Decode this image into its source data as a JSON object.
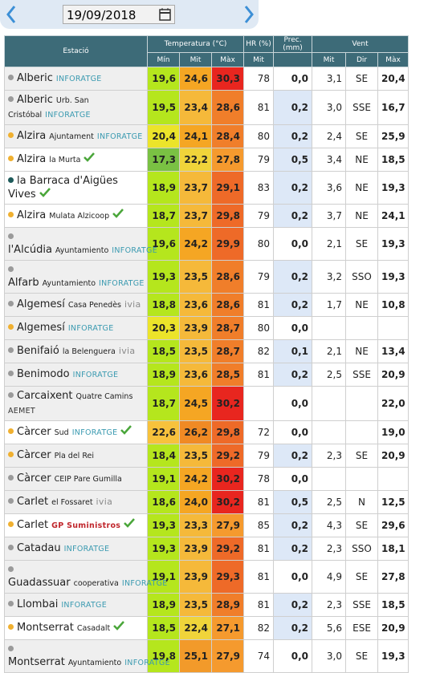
{
  "date": "19/09/2018",
  "table": {
    "headers": [
      "Estació",
      "Temperatura (°C)",
      "HR (%)",
      "Prec. (mm)",
      "Vent"
    ],
    "subheaders": [
      "Mín",
      "Mit",
      "Màx",
      "Mit",
      "Mit",
      "Dir",
      "Màx"
    ],
    "rows": [
      {
        "dot": "#9a9a9a",
        "name": "Alberic",
        "place": null,
        "source": "INFORATGE",
        "check": false,
        "values": [
          "19,6",
          "24,6",
          "30,3",
          "78",
          "0,0",
          "3,1",
          "SE",
          "20,4"
        ],
        "colors": [
          "#b5e61d",
          "#f5a623",
          "#e8261f"
        ]
      },
      {
        "dot": "#9a9a9a",
        "name": "Alberic",
        "place": "Urb. San Cristóbal",
        "source": "INFORATGE",
        "check": false,
        "values": [
          "19,5",
          "23,4",
          "28,6",
          "81",
          "0,2",
          "3,0",
          "SSE",
          "16,7"
        ],
        "colors": [
          "#b5e61d",
          "#f5b93a",
          "#f07e2a"
        ]
      },
      {
        "dot": "#f0b030",
        "name": "Alzira",
        "place": "Ajuntament",
        "source": "INFORATGE",
        "check": false,
        "values": [
          "20,4",
          "24,1",
          "28,4",
          "80",
          "0,2",
          "2,4",
          "SE",
          "25,9"
        ],
        "colors": [
          "#ece42a",
          "#f5a623",
          "#f07e2a"
        ]
      },
      {
        "dot": "#f0b030",
        "name": "Alzira",
        "place": "la Murta",
        "source": null,
        "check": true,
        "values": [
          "17,3",
          "22,2",
          "27,8",
          "79",
          "0,5",
          "3,4",
          "NE",
          "18,5"
        ],
        "colors": [
          "#7ac143",
          "#f0d43a",
          "#f59a2e"
        ]
      },
      {
        "dot": "#1e5a5a",
        "name": "la Barraca d'Aigües Vives",
        "place": null,
        "source": null,
        "check": true,
        "values": [
          "18,9",
          "23,7",
          "29,1",
          "83",
          "0,2",
          "3,6",
          "NE",
          "19,3"
        ],
        "colors": [
          "#b5e61d",
          "#f5b93a",
          "#ee6a28"
        ]
      },
      {
        "dot": "#f0b030",
        "name": "Alzira",
        "place": "Mulata Alzicoop",
        "source": null,
        "check": true,
        "values": [
          "18,7",
          "23,7",
          "29,8",
          "79",
          "0,2",
          "3,7",
          "NE",
          "24,1"
        ],
        "colors": [
          "#b5e61d",
          "#f5b93a",
          "#ee6a28"
        ]
      },
      {
        "dot": "#9a9a9a",
        "name": "l'Alcúdia",
        "place": "Ayuntamiento",
        "source": "INFORATGE",
        "check": false,
        "values": [
          "19,6",
          "24,2",
          "29,9",
          "80",
          "0,0",
          "2,1",
          "SE",
          "19,3"
        ],
        "colors": [
          "#b5e61d",
          "#f5a623",
          "#ee6a28"
        ]
      },
      {
        "dot": "#9a9a9a",
        "name": "Alfarb",
        "place": "Ayuntamiento",
        "source": "INFORATGE",
        "check": false,
        "values": [
          "19,3",
          "23,5",
          "28,6",
          "79",
          "0,2",
          "3,2",
          "SSO",
          "19,3"
        ],
        "colors": [
          "#b5e61d",
          "#f5b93a",
          "#f07e2a"
        ]
      },
      {
        "dot": "#9a9a9a",
        "name": "Algemesí",
        "place": "Casa Penedès",
        "source": "ivia",
        "check": false,
        "values": [
          "18,8",
          "23,6",
          "28,6",
          "81",
          "0,2",
          "1,7",
          "NE",
          "10,8"
        ],
        "colors": [
          "#b5e61d",
          "#f5b93a",
          "#f07e2a"
        ]
      },
      {
        "dot": "#f0b030",
        "name": "Algemesí",
        "place": null,
        "source": "INFORATGE",
        "check": false,
        "values": [
          "20,3",
          "23,9",
          "28,7",
          "80",
          "0,0",
          null,
          null,
          null
        ],
        "colors": [
          "#ece42a",
          "#f5b93a",
          "#f07e2a"
        ]
      },
      {
        "dot": "#9a9a9a",
        "name": "Benifaió",
        "place": "la Belenguera",
        "source": "ivia",
        "check": false,
        "values": [
          "18,5",
          "23,5",
          "28,7",
          "82",
          "0,1",
          "2,1",
          "NE",
          "13,4"
        ],
        "colors": [
          "#b5e61d",
          "#f5b93a",
          "#f07e2a"
        ]
      },
      {
        "dot": "#9a9a9a",
        "name": "Benimodo",
        "place": null,
        "source": "INFORATGE",
        "check": false,
        "values": [
          "18,9",
          "23,6",
          "28,5",
          "81",
          "0,2",
          "2,5",
          "SSE",
          "20,9"
        ],
        "colors": [
          "#b5e61d",
          "#f5b93a",
          "#f07e2a"
        ]
      },
      {
        "dot": "#9a9a9a",
        "name": "Carcaixent",
        "place": "Quatre Camins",
        "source": "AEMET",
        "check": false,
        "values": [
          "18,7",
          "24,5",
          "30,2",
          null,
          "0,0",
          null,
          null,
          "22,0"
        ],
        "colors": [
          "#b5e61d",
          "#f5a623",
          "#e8261f"
        ]
      },
      {
        "dot": "#f0b030",
        "name": "Càrcer",
        "place": "Sud",
        "source": "INFORATGE",
        "check": true,
        "values": [
          "22,6",
          "26,2",
          "29,8",
          "72",
          "0,0",
          null,
          null,
          "19,0"
        ],
        "colors": [
          "#f7c23c",
          "#f08a24",
          "#ee6a28"
        ]
      },
      {
        "dot": "#f0b030",
        "name": "Càrcer",
        "place": "Pla del Rei",
        "source": null,
        "check": false,
        "values": [
          "18,4",
          "23,5",
          "29,2",
          "79",
          "0,2",
          "2,3",
          "SE",
          "20,9"
        ],
        "colors": [
          "#b5e61d",
          "#f5b93a",
          "#ee6a28"
        ]
      },
      {
        "dot": "#9a9a9a",
        "name": "Càrcer",
        "place": "CEIP Pare Gumilla",
        "source": null,
        "check": false,
        "values": [
          "19,1",
          "24,2",
          "30,2",
          "78",
          "0,0",
          null,
          null,
          null
        ],
        "colors": [
          "#b5e61d",
          "#f5a623",
          "#e8261f"
        ]
      },
      {
        "dot": "#9a9a9a",
        "name": "Carlet",
        "place": "el Fossaret",
        "source": "ivia",
        "check": false,
        "values": [
          "18,6",
          "24,0",
          "30,2",
          "81",
          "0,5",
          "2,5",
          "N",
          "12,5"
        ],
        "colors": [
          "#b5e61d",
          "#f5a623",
          "#e8261f"
        ]
      },
      {
        "dot": "#f0b030",
        "name": "Carlet",
        "place": null,
        "source": "GP Suministros",
        "check": true,
        "values": [
          "19,3",
          "23,3",
          "27,9",
          "85",
          "0,2",
          "4,3",
          "SE",
          "29,6"
        ],
        "colors": [
          "#b5e61d",
          "#f5b93a",
          "#f59a2e"
        ]
      },
      {
        "dot": "#9a9a9a",
        "name": "Catadau",
        "place": null,
        "source": "INFORATGE",
        "check": false,
        "values": [
          "19,3",
          "23,9",
          "29,2",
          "81",
          "0,2",
          "2,3",
          "SSO",
          "18,1"
        ],
        "colors": [
          "#b5e61d",
          "#f5b93a",
          "#ee6a28"
        ]
      },
      {
        "dot": "#9a9a9a",
        "name": "Guadassuar",
        "place": "cooperativa",
        "source": "INFORATGE",
        "check": false,
        "values": [
          "19,1",
          "23,9",
          "29,3",
          "81",
          "0,0",
          "4,9",
          "SE",
          "27,8"
        ],
        "colors": [
          "#b5e61d",
          "#f5b93a",
          "#ee6a28"
        ]
      },
      {
        "dot": "#9a9a9a",
        "name": "Llombai",
        "place": null,
        "source": "INFORATGE",
        "check": false,
        "values": [
          "18,9",
          "23,5",
          "28,9",
          "81",
          "0,2",
          "2,3",
          "SSE",
          "18,5"
        ],
        "colors": [
          "#b5e61d",
          "#f5b93a",
          "#f07e2a"
        ]
      },
      {
        "dot": "#f0b030",
        "name": "Montserrat",
        "place": "Casadalt",
        "source": null,
        "check": true,
        "values": [
          "18,5",
          "22,4",
          "27,1",
          "82",
          "0,2",
          "5,6",
          "ESE",
          "20,9"
        ],
        "colors": [
          "#b5e61d",
          "#f0d43a",
          "#f59a2e"
        ]
      },
      {
        "dot": "#9a9a9a",
        "name": "Montserrat",
        "place": "Ayuntamiento",
        "source": "INFORATGE",
        "check": false,
        "values": [
          "19,8",
          "25,1",
          "27,9",
          "74",
          "0,0",
          "3,0",
          "SE",
          "19,3"
        ],
        "colors": [
          "#b5e61d",
          "#f29a2a",
          "#f59a2e"
        ]
      }
    ]
  }
}
